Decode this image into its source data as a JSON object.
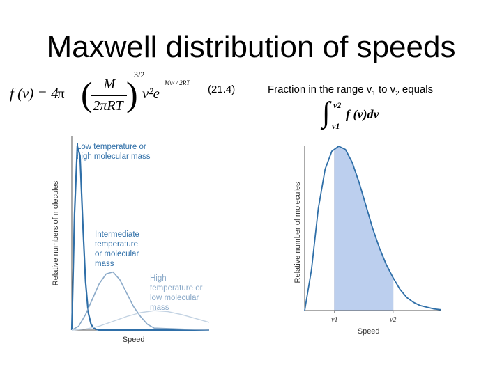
{
  "title": "Maxwell distribution of speeds",
  "formula": {
    "lhs": "f (v) = 4π",
    "numerator": "M",
    "denominator": "2πRT",
    "power": "3/2",
    "body": "v²e",
    "exponent": "Mv² / 2RT"
  },
  "equation_number": "(21.4)",
  "fraction_text": {
    "prefix": "Fraction in the range v",
    "sub1": "1",
    "middle": " to v",
    "sub2": "2",
    "suffix": " equals"
  },
  "integral": {
    "sign": "∫",
    "upper": "v2",
    "lower": "v1",
    "integrand": "f (v)dv"
  },
  "chart_data": [
    {
      "type": "line",
      "xlabel": "Speed",
      "ylabel": "Relative numbers of molecules",
      "colors": [
        "#2f6fa8",
        "#8aa9c8",
        "#c2d2e2"
      ],
      "series": [
        {
          "annotation": "Low temperature or high molecular mass",
          "x": [
            0.0,
            0.02,
            0.04,
            0.06,
            0.08,
            0.1,
            0.12,
            0.14,
            0.16,
            0.18,
            0.2,
            1.0
          ],
          "values": [
            0.0,
            0.6,
            0.95,
            0.9,
            0.55,
            0.25,
            0.09,
            0.03,
            0.01,
            0.003,
            0.0,
            0.0
          ]
        },
        {
          "annotation": "Intermediate temperature or molecular mass",
          "x": [
            0.0,
            0.05,
            0.1,
            0.15,
            0.2,
            0.25,
            0.3,
            0.35,
            0.4,
            0.45,
            0.5,
            0.55,
            0.6,
            1.0
          ],
          "values": [
            0.0,
            0.02,
            0.08,
            0.16,
            0.24,
            0.29,
            0.3,
            0.26,
            0.19,
            0.12,
            0.07,
            0.03,
            0.01,
            0.0
          ]
        },
        {
          "annotation": "High temperature or low molecular mass",
          "x": [
            0.0,
            0.1,
            0.2,
            0.3,
            0.4,
            0.5,
            0.6,
            0.7,
            0.8,
            0.9,
            1.0
          ],
          "values": [
            0.0,
            0.005,
            0.02,
            0.045,
            0.07,
            0.09,
            0.1,
            0.095,
            0.08,
            0.06,
            0.04
          ]
        }
      ]
    },
    {
      "type": "area",
      "xlabel": "Speed",
      "ylabel": "Relative number of molecules",
      "colors": [
        "#2f6fa8",
        "#bccfee"
      ],
      "tick_labels": [
        "v1",
        "v2"
      ],
      "shaded_range": [
        0.22,
        0.65
      ],
      "series": [
        {
          "x": [
            0.0,
            0.05,
            0.1,
            0.15,
            0.2,
            0.25,
            0.3,
            0.35,
            0.4,
            0.45,
            0.5,
            0.55,
            0.6,
            0.65,
            0.7,
            0.75,
            0.8,
            0.85,
            0.9,
            0.95,
            1.0
          ],
          "values": [
            0.0,
            0.25,
            0.62,
            0.86,
            0.97,
            1.0,
            0.98,
            0.9,
            0.78,
            0.64,
            0.5,
            0.38,
            0.28,
            0.2,
            0.13,
            0.08,
            0.05,
            0.03,
            0.02,
            0.01,
            0.005
          ]
        }
      ]
    }
  ]
}
